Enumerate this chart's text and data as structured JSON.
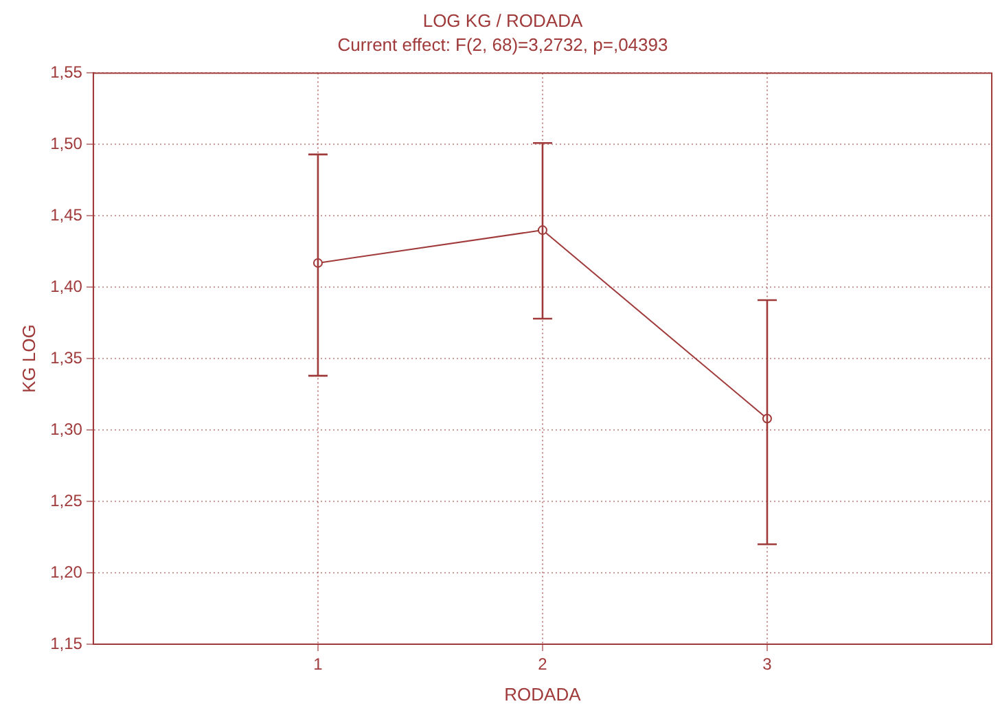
{
  "chart_data": {
    "type": "line",
    "title": "LOG KG / RODADA",
    "subtitle": "Current effect: F(2, 68)=3,2732, p=,04393",
    "xlabel": "RODADA",
    "ylabel": "KG LOG",
    "x": [
      1,
      2,
      3
    ],
    "series": [
      {
        "color": "#a03a3a",
        "values": [
          1.417,
          1.44,
          1.308
        ],
        "errors": [
          [
            1.338,
            1.493
          ],
          [
            1.378,
            1.501
          ],
          [
            1.22,
            1.391
          ]
        ]
      }
    ],
    "xlim": [
      0,
      4
    ],
    "xticks": [
      1,
      2,
      3
    ],
    "ylim": [
      1.15,
      1.55
    ],
    "yticks": [
      {
        "value": 1.15,
        "label": "1,15"
      },
      {
        "value": 1.2,
        "label": "1,20"
      },
      {
        "value": 1.25,
        "label": "1,25"
      },
      {
        "value": 1.3,
        "label": "1,30"
      },
      {
        "value": 1.35,
        "label": "1,35"
      },
      {
        "value": 1.4,
        "label": "1,40"
      },
      {
        "value": 1.45,
        "label": "1,45"
      },
      {
        "value": 1.5,
        "label": "1,50"
      },
      {
        "value": 1.55,
        "label": "1,55"
      }
    ],
    "grid": true,
    "legend": false,
    "marker": "circle",
    "line_style": "solid"
  }
}
